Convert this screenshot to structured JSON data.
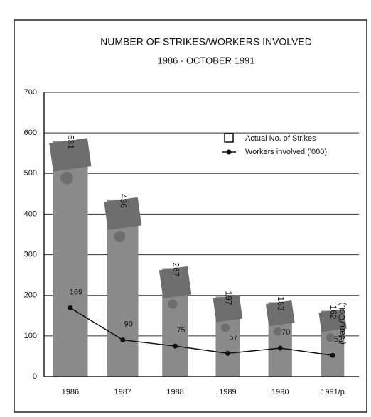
{
  "chart_data": {
    "type": "bar",
    "title": "NUMBER OF STRIKES/WORKERS INVOLVED",
    "subtitle": "1986 - OCTOBER 1991",
    "categories": [
      "1986",
      "1987",
      "1988",
      "1989",
      "1990",
      "1991/p"
    ],
    "series": [
      {
        "name": "Actual No. of Strikes",
        "color": "#8a8a8a",
        "values": [
          581,
          436,
          267,
          197,
          183,
          162
        ]
      },
      {
        "name": "Workers involved ('000)",
        "color": "#111111",
        "type": "line",
        "values": [
          169,
          90,
          75,
          57,
          70,
          52
        ]
      }
    ],
    "annotation": "( Jan./Oct.)",
    "ylim": [
      0,
      700
    ],
    "yticks": [
      0,
      100,
      200,
      300,
      400,
      500,
      600,
      700
    ],
    "grid": true
  }
}
